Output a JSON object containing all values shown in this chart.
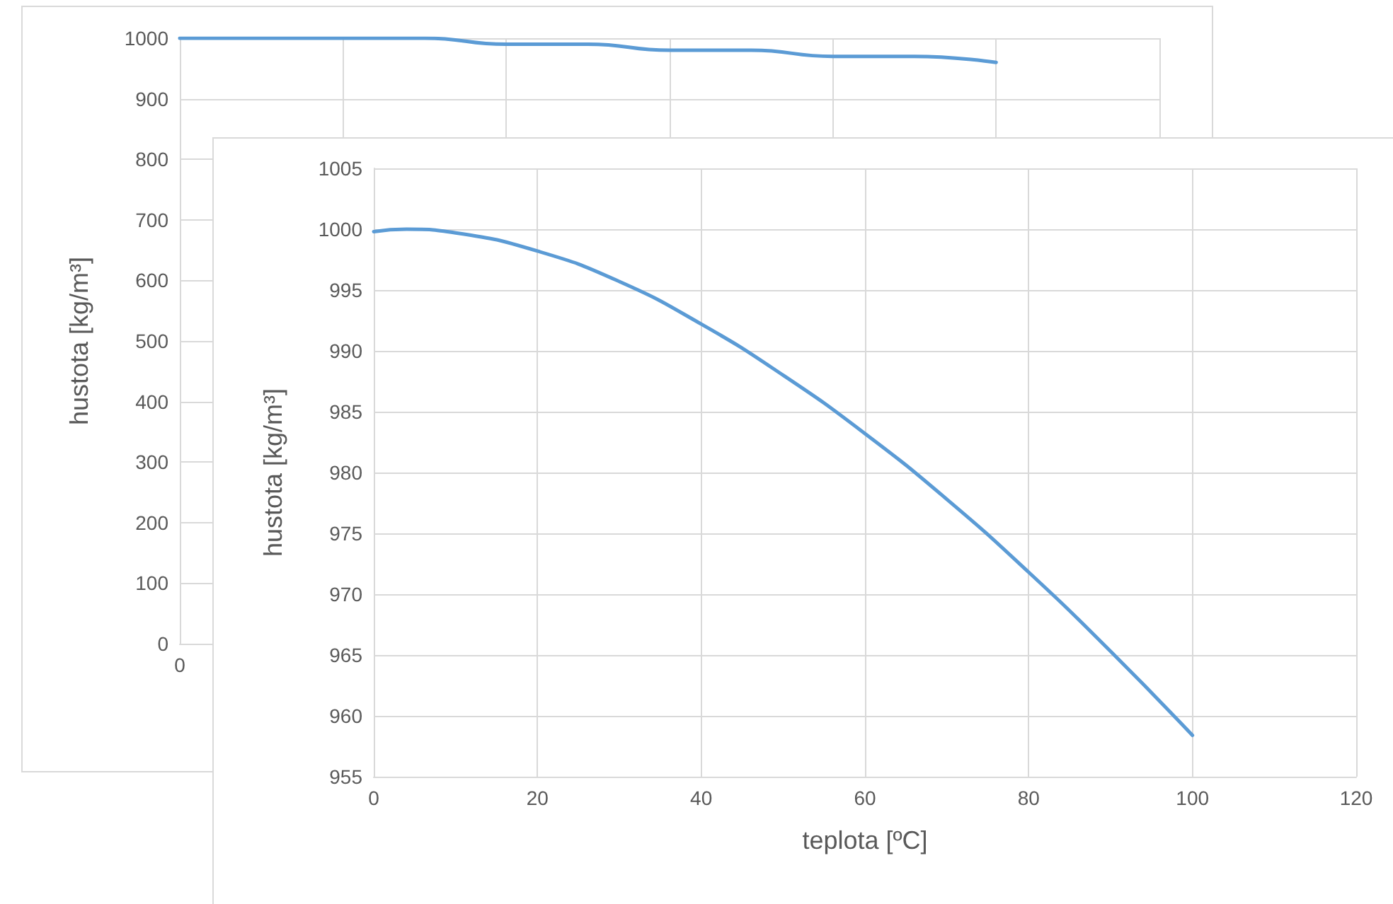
{
  "chart_data": [
    {
      "type": "line",
      "ylabel": "hustota [kg/m³]",
      "categories": [
        "0",
        null,
        null,
        null,
        null,
        null,
        null,
        null,
        null,
        null,
        null,
        null,
        null
      ],
      "series": [
        {
          "color": "#5b9bd5",
          "values": [
            1000,
            1000,
            1000,
            1000,
            990,
            990,
            980,
            980,
            970,
            970,
            960,
            null,
            null
          ]
        }
      ],
      "ylim": [
        0,
        1000
      ],
      "yticks": [
        0,
        100,
        200,
        300,
        400,
        500,
        600,
        700,
        800,
        900,
        1000
      ],
      "grid": true,
      "marker": "none",
      "line_style": "solid"
    },
    {
      "type": "line",
      "xlabel": "teplota [ºC]",
      "ylabel": "hustota [kg/m³]",
      "x": [
        0,
        4,
        10,
        20,
        30,
        40,
        50,
        60,
        70,
        80,
        90,
        100
      ],
      "series": [
        {
          "color": "#5b9bd5",
          "values": [
            999.8,
            1000.0,
            999.7,
            998.2,
            995.7,
            992.2,
            988.0,
            983.2,
            977.8,
            971.8,
            965.3,
            958.4
          ]
        }
      ],
      "xlim": [
        0,
        120
      ],
      "xticks": [
        0,
        20,
        40,
        60,
        80,
        100,
        120
      ],
      "ylim": [
        955,
        1005
      ],
      "yticks": [
        955,
        960,
        965,
        970,
        975,
        980,
        985,
        990,
        995,
        1000,
        1005
      ],
      "grid": true,
      "marker": "none",
      "line_style": "solid"
    }
  ]
}
